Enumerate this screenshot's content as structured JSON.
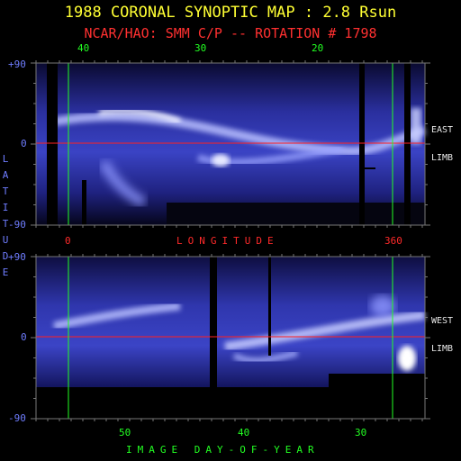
{
  "chart_data": [
    {
      "type": "heatmap",
      "panel": "east-limb",
      "title": "1988 CORONAL SYNOPTIC MAP : 2.8 Rsun",
      "subtitle": "NCAR/HAO: SMM C/P -- ROTATION # 1798",
      "limb_label": [
        "EAST",
        "LIMB"
      ],
      "xlabel": "LONGITUDE",
      "ylabel": "LATITUDE",
      "y_ticks": [
        "+90",
        "0",
        "-90"
      ],
      "ylim": [
        -90,
        90
      ],
      "top_ticks": [
        "40",
        "30",
        "20"
      ],
      "bottom_ticks": [
        "0",
        "360"
      ],
      "equator_latitude": 0,
      "colormap": "dark blue to white (brightness)"
    },
    {
      "type": "heatmap",
      "panel": "west-limb",
      "limb_label": [
        "WEST",
        "LIMB"
      ],
      "xlabel": "IMAGE DAY-OF-YEAR",
      "y_ticks": [
        "+90",
        "0",
        "-90"
      ],
      "ylim": [
        -90,
        90
      ],
      "bottom_ticks": [
        "50",
        "40",
        "30"
      ],
      "equator_latitude": 0,
      "colormap": "dark blue to white (brightness)"
    }
  ],
  "colors": {
    "title": "#ffff33",
    "subtitle": "#ff3030",
    "axis_labels": "#6f7dff",
    "green_ticks": "#22ff22",
    "longitude_marker": "#22ff22",
    "equator_line": "#ff2020",
    "frame": "#777777"
  }
}
